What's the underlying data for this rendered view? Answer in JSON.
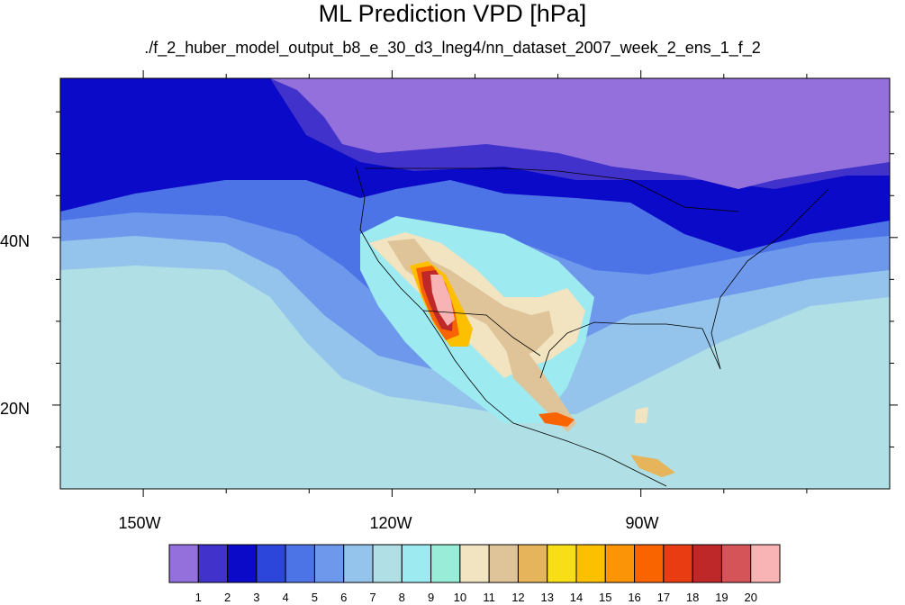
{
  "title": "ML Prediction VPD [hPa]",
  "subtitle": "./f_2_huber_model_output_b8_e_30_d3_lneg4/nn_dataset_2007_week_2_ens_1_f_2",
  "map": {
    "lon_range": [
      -160,
      -60
    ],
    "lat_range": [
      10,
      59
    ],
    "lat_labels": [
      "40N",
      "20N"
    ],
    "lon_labels": [
      "150W",
      "120W",
      "90W"
    ]
  },
  "colorbar": {
    "labels": [
      "1",
      "2",
      "3",
      "4",
      "5",
      "6",
      "7",
      "8",
      "9",
      "10",
      "11",
      "12",
      "13",
      "14",
      "15",
      "16",
      "17",
      "18",
      "19",
      "20"
    ],
    "colors": [
      "#9370db",
      "#4232cc",
      "#0a0ac8",
      "#2c46dc",
      "#4c74e6",
      "#6e98ec",
      "#94c4ec",
      "#b0e0e6",
      "#9deaf0",
      "#98ecd8",
      "#f2e4c0",
      "#dfc49a",
      "#e6b45a",
      "#f7de16",
      "#fdc000",
      "#fb9406",
      "#fa6400",
      "#ea3c12",
      "#bf2828",
      "#d45458",
      "#f8b4b4"
    ]
  }
}
